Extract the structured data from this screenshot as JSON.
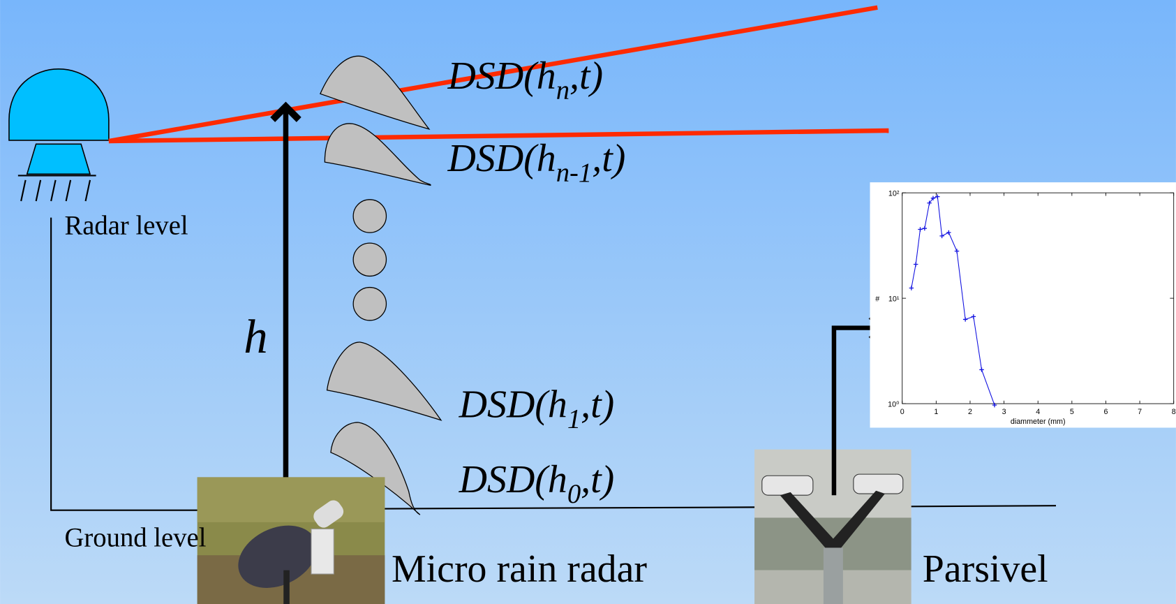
{
  "diagram": {
    "dsd_labels": [
      {
        "base": "DSD(h",
        "sub": "n",
        "end": ",t)"
      },
      {
        "base": "DSD(h",
        "sub": "n-1",
        "end": ",t)"
      },
      {
        "base": "DSD(h",
        "sub": "1",
        "end": ",t)"
      },
      {
        "base": "DSD(h",
        "sub": "0",
        "end": ",t)"
      }
    ],
    "radar_level": "Radar level",
    "ground_level": "Ground level",
    "height_label": "h",
    "micro_rain_radar": "Micro rain radar",
    "parsivel": "Parsivel"
  },
  "chart_data": {
    "type": "line",
    "xlabel": "diammeter (mm)",
    "ylabel": "#",
    "color": "#1010e0",
    "log_y": true,
    "x": [
      0.27,
      0.4,
      0.53,
      0.66,
      0.8,
      0.91,
      1.04,
      1.17,
      1.37,
      1.61,
      1.86,
      2.1,
      2.34,
      2.72
    ],
    "values": [
      12.5,
      21,
      45,
      46,
      80,
      89,
      92,
      39,
      42,
      28,
      6.3,
      6.7,
      2.1,
      0.97
    ],
    "xlim": [
      0,
      8
    ],
    "ylim": [
      1,
      100
    ],
    "xticks": [
      0,
      1,
      2,
      3,
      4,
      5,
      6,
      7,
      8
    ],
    "yticks": [
      {
        "value": 1,
        "label": "10⁰"
      },
      {
        "value": 10,
        "label": "10¹"
      },
      {
        "value": 100,
        "label": "10²"
      }
    ]
  }
}
